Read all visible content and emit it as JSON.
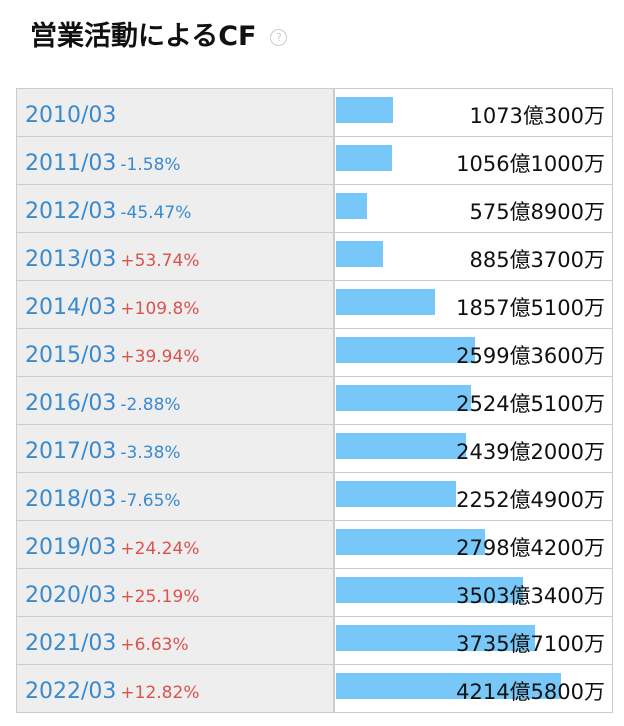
{
  "header": {
    "title": "営業活動によるCF",
    "help": "?"
  },
  "table": {
    "rows": [
      {
        "period": "2010/03",
        "value": 1073.03,
        "value_label": "1073億300万"
      },
      {
        "period": "2011/03",
        "change": "-1.58%",
        "value": 1056.1,
        "value_label": "1056億1000万"
      },
      {
        "period": "2012/03",
        "change": "-45.47%",
        "value": 575.89,
        "value_label": "575億8900万"
      },
      {
        "period": "2013/03",
        "change": "+53.74%",
        "value": 885.37,
        "value_label": "885億3700万"
      },
      {
        "period": "2014/03",
        "change": "+109.8%",
        "value": 1857.51,
        "value_label": "1857億5100万"
      },
      {
        "period": "2015/03",
        "change": "+39.94%",
        "value": 2599.36,
        "value_label": "2599億3600万"
      },
      {
        "period": "2016/03",
        "change": "-2.88%",
        "value": 2524.51,
        "value_label": "2524億5100万"
      },
      {
        "period": "2017/03",
        "change": "-3.38%",
        "value": 2439.2,
        "value_label": "2439億2000万"
      },
      {
        "period": "2018/03",
        "change": "-7.65%",
        "value": 2252.49,
        "value_label": "2252億4900万"
      },
      {
        "period": "2019/03",
        "change": "+24.24%",
        "value": 2798.42,
        "value_label": "2798億4200万"
      },
      {
        "period": "2020/03",
        "change": "+25.19%",
        "value": 3503.34,
        "value_label": "3503億3400万"
      },
      {
        "period": "2021/03",
        "change": "+6.63%",
        "value": 3735.71,
        "value_label": "3735億7100万"
      },
      {
        "period": "2022/03",
        "change": "+12.82%",
        "value": 4214.58,
        "value_label": "4214億5800万"
      }
    ]
  }
}
